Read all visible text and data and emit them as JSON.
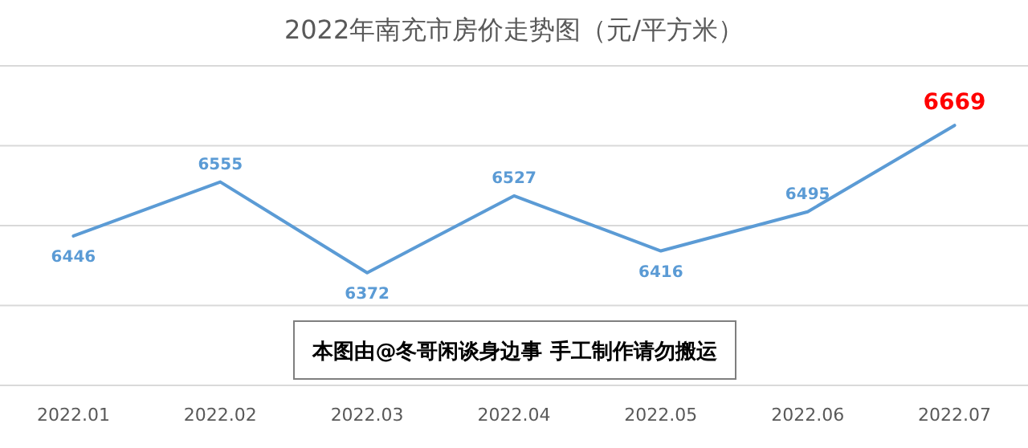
{
  "chart_data": {
    "type": "line",
    "title": "2022年南充市房价走势图（元/平方米）",
    "categories": [
      "2022.01",
      "2022.02",
      "2022.03",
      "2022.04",
      "2022.05",
      "2022.06",
      "2022.07"
    ],
    "series": [
      {
        "color": "#5b9bd5",
        "values": [
          6446,
          6555,
          6372,
          6527,
          6416,
          6495,
          6669
        ],
        "colors": [
          "#5b9bd5",
          "#5b9bd5",
          "#5b9bd5",
          "#5b9bd5",
          "#5b9bd5",
          "#5b9bd5",
          "#ff0000"
        ]
      }
    ],
    "data_labels": true,
    "marker": "none",
    "grid": "y",
    "tick_labels": "x",
    "ylim": [
      6145,
      6789
    ],
    "yticks": [
      {
        "value": 6145,
        "label": null
      },
      {
        "value": 6306,
        "label": null
      },
      {
        "value": 6467,
        "label": null
      },
      {
        "value": 6628,
        "label": null
      },
      {
        "value": 6789,
        "label": null
      }
    ],
    "annotations": [
      "本图由@冬哥闲谈身边事 手工制作请勿搬运"
    ]
  }
}
